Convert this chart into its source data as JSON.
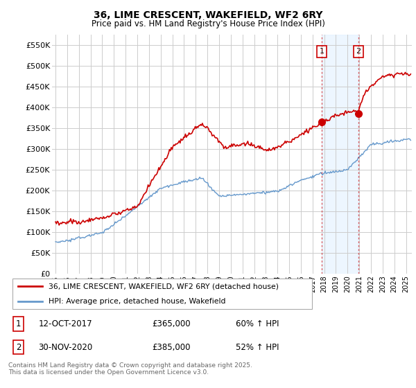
{
  "title": "36, LIME CRESCENT, WAKEFIELD, WF2 6RY",
  "subtitle": "Price paid vs. HM Land Registry's House Price Index (HPI)",
  "ylabel_ticks": [
    "£0",
    "£50K",
    "£100K",
    "£150K",
    "£200K",
    "£250K",
    "£300K",
    "£350K",
    "£400K",
    "£450K",
    "£500K",
    "£550K"
  ],
  "ytick_values": [
    0,
    50000,
    100000,
    150000,
    200000,
    250000,
    300000,
    350000,
    400000,
    450000,
    500000,
    550000
  ],
  "ylim": [
    0,
    575000
  ],
  "xlim_start": 1994.7,
  "xlim_end": 2025.5,
  "line1_color": "#cc0000",
  "line2_color": "#6699cc",
  "marker1_date": 2017.79,
  "marker1_value": 365000,
  "marker2_date": 2020.92,
  "marker2_value": 385000,
  "vline1_x": 2017.79,
  "vline2_x": 2020.92,
  "legend_label1": "36, LIME CRESCENT, WAKEFIELD, WF2 6RY (detached house)",
  "legend_label2": "HPI: Average price, detached house, Wakefield",
  "sale1_label": "1",
  "sale1_date": "12-OCT-2017",
  "sale1_price": "£365,000",
  "sale1_hpi": "60% ↑ HPI",
  "sale2_label": "2",
  "sale2_date": "30-NOV-2020",
  "sale2_price": "£385,000",
  "sale2_hpi": "52% ↑ HPI",
  "footer": "Contains HM Land Registry data © Crown copyright and database right 2025.\nThis data is licensed under the Open Government Licence v3.0.",
  "bg_color": "#ffffff",
  "grid_color": "#cccccc",
  "vline_color": "#cc0000",
  "vline_alpha": 0.6,
  "highlight_color": "#ddeeff",
  "highlight_alpha": 0.5
}
